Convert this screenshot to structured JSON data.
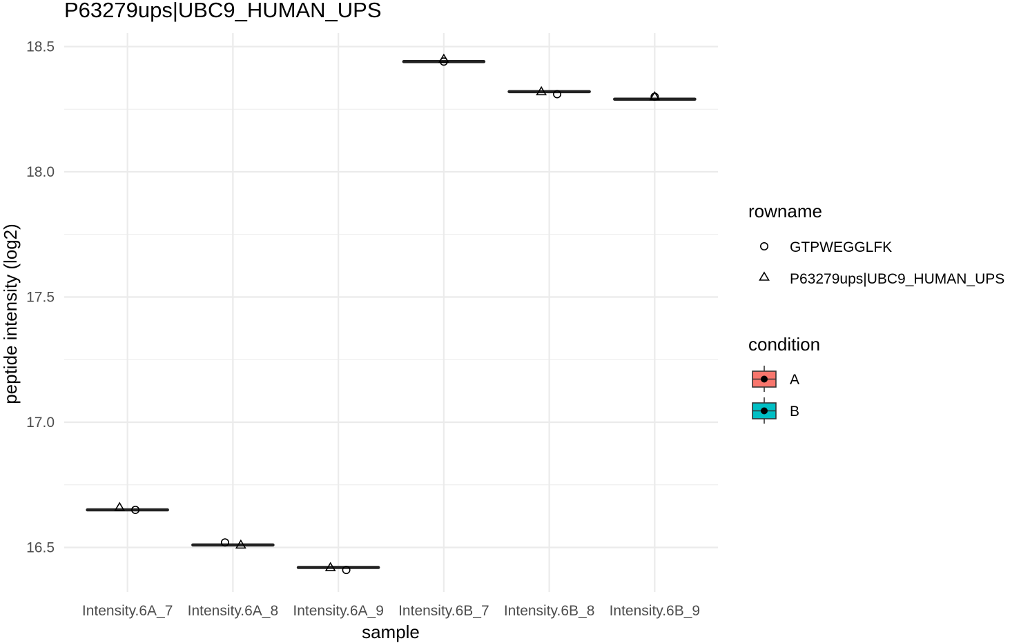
{
  "chart_data": {
    "type": "box",
    "title": "P63279ups|UBC9_HUMAN_UPS",
    "xlabel": "sample",
    "ylabel": "peptide intensity (log2)",
    "categories": [
      "Intensity.6A_7",
      "Intensity.6A_8",
      "Intensity.6A_9",
      "Intensity.6B_7",
      "Intensity.6B_8",
      "Intensity.6B_9"
    ],
    "ylim": [
      16.34,
      18.65
    ],
    "yticks": [
      16.5,
      17.0,
      17.5,
      18.0,
      18.5
    ],
    "ytick_labels": [
      "16.5",
      "17.0",
      "17.5",
      "18.0",
      "18.5"
    ],
    "grid": true,
    "medians": [
      16.65,
      16.51,
      16.42,
      18.44,
      18.32,
      18.29
    ],
    "conditions": [
      "A",
      "A",
      "A",
      "B",
      "B",
      "B"
    ],
    "series": [
      {
        "name": "GTPWEGGLFK",
        "shape": "circle",
        "values": [
          16.65,
          16.52,
          16.41,
          18.44,
          18.31,
          18.3
        ]
      },
      {
        "name": "P63279ups|UBC9_HUMAN_UPS",
        "shape": "triangle",
        "values": [
          16.66,
          16.51,
          16.42,
          18.45,
          18.32,
          18.3
        ]
      }
    ],
    "legends": {
      "rowname": {
        "title": "rowname",
        "items": [
          {
            "label": "GTPWEGGLFK",
            "shape": "circle"
          },
          {
            "label": "P63279ups|UBC9_HUMAN_UPS",
            "shape": "triangle"
          }
        ]
      },
      "condition": {
        "title": "condition",
        "items": [
          {
            "label": "A",
            "color": "#F8766D"
          },
          {
            "label": "B",
            "color": "#00BFC4"
          }
        ]
      }
    },
    "legend_position": "right"
  }
}
